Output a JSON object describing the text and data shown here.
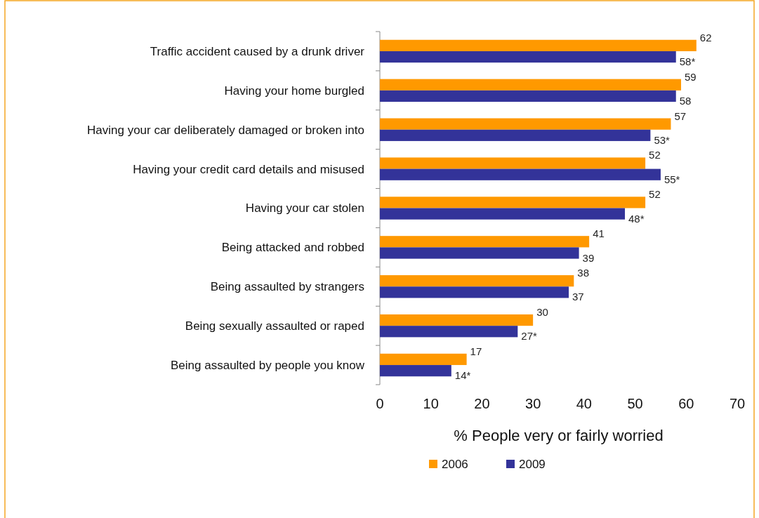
{
  "chart_data": {
    "type": "bar",
    "orientation": "horizontal",
    "xlabel": "% People very or fairly worried",
    "categories": [
      "Traffic accident caused by a drunk driver",
      "Having your home burgled",
      "Having your car deliberately damaged or broken into",
      "Having your credit card details and misused",
      "Having your car stolen",
      "Being attacked and robbed",
      "Being assaulted by strangers",
      "Being sexually assaulted or raped",
      "Being assaulted by people you know"
    ],
    "series": [
      {
        "name": "2006",
        "color": "#ff9900",
        "values": [
          62,
          59,
          57,
          52,
          52,
          41,
          38,
          30,
          17
        ],
        "value_labels": [
          "62",
          "59",
          "57",
          "52",
          "52",
          "41",
          "38",
          "30",
          "17"
        ]
      },
      {
        "name": "2009",
        "color": "#333399",
        "values": [
          58,
          58,
          53,
          55,
          48,
          39,
          37,
          27,
          14
        ],
        "value_labels": [
          "58*",
          "58",
          "53*",
          "55*",
          "48*",
          "39",
          "37",
          "27*",
          "14*"
        ]
      }
    ],
    "xlim": [
      0,
      70
    ],
    "xticks": [
      0,
      10,
      20,
      30,
      40,
      50,
      60,
      70
    ],
    "grid": false,
    "legend": "bottom"
  }
}
